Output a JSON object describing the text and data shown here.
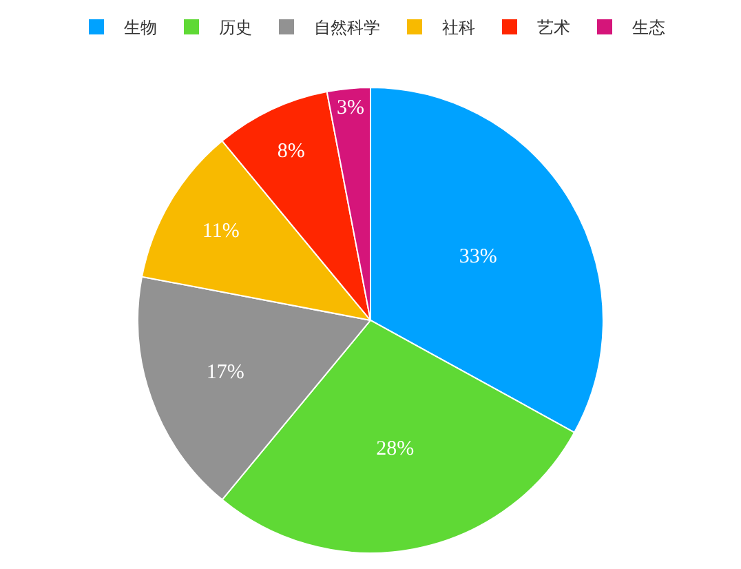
{
  "chart_data": {
    "type": "pie",
    "categories": [
      "生物",
      "历史",
      "自然科学",
      "社科",
      "艺术",
      "生态"
    ],
    "values": [
      33,
      28,
      17,
      11,
      8,
      3
    ],
    "value_labels": [
      "33%",
      "28%",
      "17%",
      "11%",
      "8%",
      "3%"
    ],
    "colors": [
      "#00a2ff",
      "#5fd935",
      "#929292",
      "#f8ba00",
      "#ff2600",
      "#d5157a"
    ],
    "legend": "top"
  }
}
